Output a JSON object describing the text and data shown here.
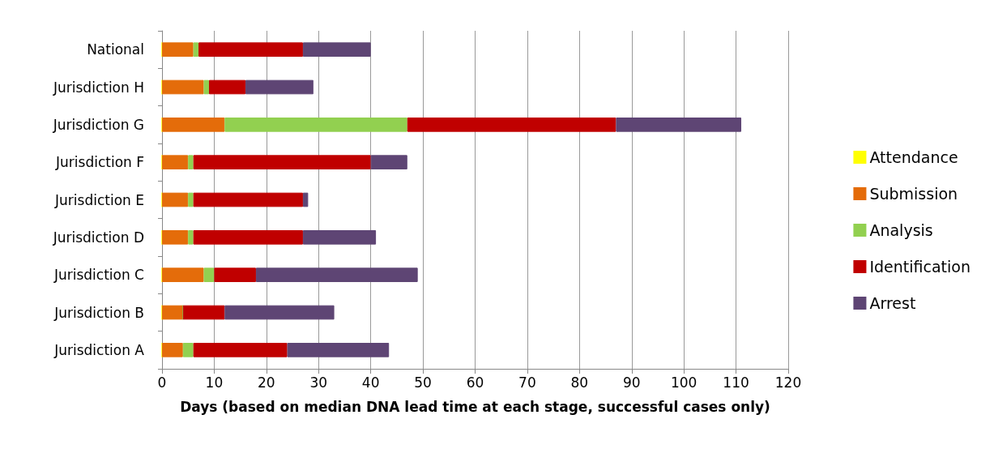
{
  "chart_data": {
    "type": "bar",
    "orientation": "horizontal",
    "stacked": true,
    "xlabel": "Days (based on median DNA lead time at each stage, successful cases only)",
    "categories": [
      "National",
      "Jurisdiction H",
      "Jurisdiction G",
      "Jurisdiction F",
      "Jurisdiction E",
      "Jurisdiction D",
      "Jurisdiction C",
      "Jurisdiction B",
      "Jurisdiction A"
    ],
    "series": [
      {
        "name": "Attendance",
        "color": "#ffff00",
        "values": [
          0,
          0,
          0,
          0,
          0,
          0,
          0,
          0,
          0
        ]
      },
      {
        "name": "Submission",
        "color": "#e46c0a",
        "values": [
          6,
          8,
          12,
          5,
          5,
          5,
          8,
          4,
          4
        ]
      },
      {
        "name": "Analysis",
        "color": "#92d050",
        "values": [
          1,
          1,
          35,
          1,
          1,
          1,
          2,
          0,
          2
        ]
      },
      {
        "name": "Identification",
        "color": "#c00000",
        "values": [
          20,
          7,
          40,
          34,
          21,
          21,
          8,
          8,
          18
        ]
      },
      {
        "name": "Arrest",
        "color": "#5e4574",
        "values": [
          13,
          13,
          24,
          7,
          1,
          14,
          31,
          21,
          19.5
        ]
      }
    ],
    "xlim": [
      0,
      120
    ],
    "xticks": [
      0,
      10,
      20,
      30,
      40,
      50,
      60,
      70,
      80,
      90,
      100,
      110,
      120
    ],
    "grid": "x",
    "legend": "right"
  }
}
